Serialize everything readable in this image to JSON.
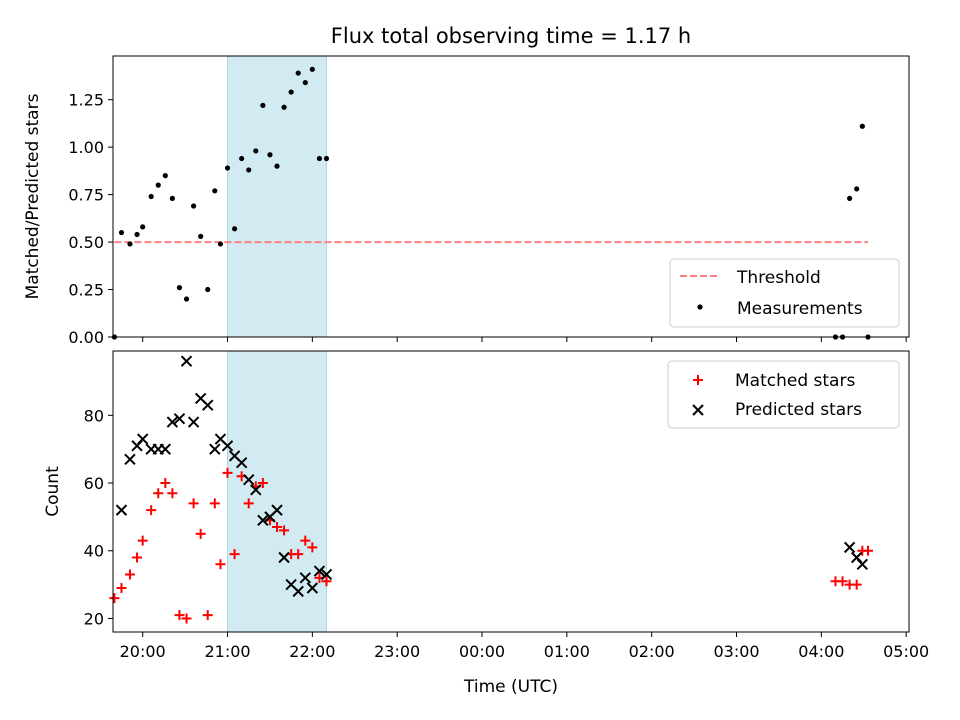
{
  "figure": {
    "title": "Flux total observing time = 1.17 h",
    "xlabel": "Time (UTC)",
    "highlight_color": "#add8e6"
  },
  "chart_data": [
    {
      "type": "scatter",
      "ylabel": "Matched/Predicted stars",
      "xlim": [
        "19:39",
        "29:02"
      ],
      "ylim": [
        0,
        1.48
      ],
      "yticks": [
        0.0,
        0.25,
        0.5,
        0.75,
        1.0,
        1.25
      ],
      "ytick_labels": [
        "0.00",
        "0.25",
        "0.50",
        "0.75",
        "1.00",
        "1.25"
      ],
      "highlight_span": [
        "21:00",
        "22:10"
      ],
      "legend_position": "lower right",
      "threshold": {
        "name": "Threshold",
        "y": 0.5,
        "x_range": [
          "19:40",
          "28:33"
        ],
        "color": "#ff8080"
      },
      "series": [
        {
          "name": "Measurements",
          "color": "#000000",
          "points": [
            [
              "19:40",
              0.0
            ],
            [
              "19:45",
              0.55
            ],
            [
              "19:51",
              0.49
            ],
            [
              "19:56",
              0.54
            ],
            [
              "20:00",
              0.58
            ],
            [
              "20:06",
              0.74
            ],
            [
              "20:11",
              0.8
            ],
            [
              "20:16",
              0.85
            ],
            [
              "20:21",
              0.73
            ],
            [
              "20:26",
              0.26
            ],
            [
              "20:31",
              0.2
            ],
            [
              "20:36",
              0.69
            ],
            [
              "20:41",
              0.53
            ],
            [
              "20:46",
              0.25
            ],
            [
              "20:51",
              0.77
            ],
            [
              "20:55",
              0.49
            ],
            [
              "21:00",
              0.89
            ],
            [
              "21:05",
              0.57
            ],
            [
              "21:10",
              0.94
            ],
            [
              "21:15",
              0.88
            ],
            [
              "21:20",
              0.98
            ],
            [
              "21:25",
              1.22
            ],
            [
              "21:30",
              0.96
            ],
            [
              "21:35",
              0.9
            ],
            [
              "21:40",
              1.21
            ],
            [
              "21:45",
              1.29
            ],
            [
              "21:50",
              1.39
            ],
            [
              "21:55",
              1.34
            ],
            [
              "22:00",
              1.41
            ],
            [
              "22:05",
              0.94
            ],
            [
              "22:10",
              0.94
            ],
            [
              "28:10",
              0.0
            ],
            [
              "28:15",
              0.0
            ],
            [
              "28:20",
              0.73
            ],
            [
              "28:25",
              0.78
            ],
            [
              "28:29",
              1.11
            ],
            [
              "28:33",
              0.0
            ]
          ]
        }
      ]
    },
    {
      "type": "scatter",
      "ylabel": "Count",
      "xlim": [
        "19:39",
        "29:02"
      ],
      "ylim": [
        16,
        99
      ],
      "yticks": [
        20,
        40,
        60,
        80
      ],
      "ytick_labels": [
        "20",
        "40",
        "60",
        "80"
      ],
      "xticks": [
        "20:00",
        "21:00",
        "22:00",
        "23:00",
        "24:00",
        "25:00",
        "26:00",
        "27:00",
        "28:00",
        "29:00"
      ],
      "xtick_labels": [
        "20:00",
        "21:00",
        "22:00",
        "23:00",
        "00:00",
        "01:00",
        "02:00",
        "03:00",
        "04:00",
        "05:00"
      ],
      "highlight_span": [
        "21:00",
        "22:10"
      ],
      "legend_position": "upper right",
      "series": [
        {
          "name": "Matched stars",
          "marker": "plus",
          "color": "#ff0000",
          "points": [
            [
              "19:40",
              26
            ],
            [
              "19:45",
              29
            ],
            [
              "19:51",
              33
            ],
            [
              "19:56",
              38
            ],
            [
              "20:00",
              43
            ],
            [
              "20:06",
              52
            ],
            [
              "20:11",
              57
            ],
            [
              "20:16",
              60
            ],
            [
              "20:21",
              57
            ],
            [
              "20:26",
              21
            ],
            [
              "20:31",
              20
            ],
            [
              "20:36",
              54
            ],
            [
              "20:41",
              45
            ],
            [
              "20:46",
              21
            ],
            [
              "20:51",
              54
            ],
            [
              "20:55",
              36
            ],
            [
              "21:00",
              63
            ],
            [
              "21:05",
              39
            ],
            [
              "21:10",
              62
            ],
            [
              "21:15",
              54
            ],
            [
              "21:20",
              59
            ],
            [
              "21:25",
              60
            ],
            [
              "21:30",
              49
            ],
            [
              "21:35",
              47
            ],
            [
              "21:40",
              46
            ],
            [
              "21:45",
              39
            ],
            [
              "21:50",
              39
            ],
            [
              "21:55",
              43
            ],
            [
              "22:00",
              41
            ],
            [
              "22:05",
              32
            ],
            [
              "22:10",
              31
            ],
            [
              "28:10",
              31
            ],
            [
              "28:15",
              31
            ],
            [
              "28:20",
              30
            ],
            [
              "28:25",
              30
            ],
            [
              "28:29",
              40
            ],
            [
              "28:33",
              40
            ]
          ]
        },
        {
          "name": "Predicted stars",
          "marker": "x",
          "color": "#000000",
          "points": [
            [
              "19:45",
              52
            ],
            [
              "19:51",
              67
            ],
            [
              "19:56",
              71
            ],
            [
              "20:00",
              73
            ],
            [
              "20:06",
              70
            ],
            [
              "20:11",
              70
            ],
            [
              "20:16",
              70
            ],
            [
              "20:21",
              78
            ],
            [
              "20:26",
              79
            ],
            [
              "20:31",
              96
            ],
            [
              "20:36",
              78
            ],
            [
              "20:41",
              85
            ],
            [
              "20:46",
              83
            ],
            [
              "20:51",
              70
            ],
            [
              "20:55",
              73
            ],
            [
              "21:00",
              71
            ],
            [
              "21:05",
              68
            ],
            [
              "21:10",
              66
            ],
            [
              "21:15",
              61
            ],
            [
              "21:20",
              58
            ],
            [
              "21:25",
              49
            ],
            [
              "21:30",
              50
            ],
            [
              "21:35",
              52
            ],
            [
              "21:40",
              38
            ],
            [
              "21:45",
              30
            ],
            [
              "21:50",
              28
            ],
            [
              "21:55",
              32
            ],
            [
              "22:00",
              29
            ],
            [
              "22:05",
              34
            ],
            [
              "22:10",
              33
            ],
            [
              "28:20",
              41
            ],
            [
              "28:25",
              38
            ],
            [
              "28:29",
              36
            ]
          ]
        }
      ]
    }
  ]
}
